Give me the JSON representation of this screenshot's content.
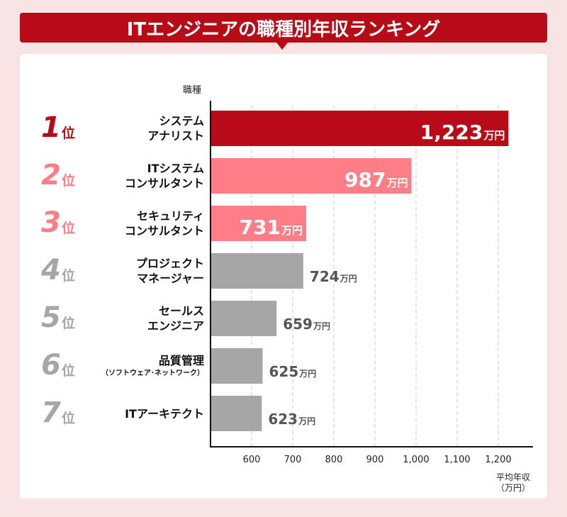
{
  "title": "ITエンジニアの職種別年収ランキング",
  "colors": {
    "banner": "#b70c18",
    "background": "#f8e4e4",
    "rank1": "#b70c18",
    "rank2_3": "#ff7d86",
    "rank_other": "#a6a6a6"
  },
  "chart_data": {
    "type": "bar",
    "orientation": "horizontal",
    "ylabel": "職種",
    "xlabel_line1": "平均年収",
    "xlabel_line2": "（万円）",
    "xlim": [
      500,
      1250
    ],
    "xticks": [
      600,
      700,
      800,
      900,
      1000,
      1100,
      1200
    ],
    "xtick_labels": [
      "600",
      "700",
      "800",
      "900",
      "1,000",
      "1,100",
      "1,200"
    ],
    "grid": "vertical dashed",
    "unit": "万円",
    "items": [
      {
        "rank": "1",
        "rank_suffix": "位",
        "job_line1": "システム",
        "job_line2": "アナリスト",
        "value": 1223,
        "value_label": "1,223"
      },
      {
        "rank": "2",
        "rank_suffix": "位",
        "job_line1": "ITシステム",
        "job_line2": "コンサルタント",
        "value": 987,
        "value_label": "987"
      },
      {
        "rank": "3",
        "rank_suffix": "位",
        "job_line1": "セキュリティ",
        "job_line2": "コンサルタント",
        "value": 731,
        "value_label": "731"
      },
      {
        "rank": "4",
        "rank_suffix": "位",
        "job_line1": "プロジェクト",
        "job_line2": "マネージャー",
        "value": 724,
        "value_label": "724"
      },
      {
        "rank": "5",
        "rank_suffix": "位",
        "job_line1": "セールス",
        "job_line2": "エンジニア",
        "value": 659,
        "value_label": "659"
      },
      {
        "rank": "6",
        "rank_suffix": "位",
        "job_line1": "品質管理",
        "job_line2": "（ソフトウェア･ネットワーク）",
        "value": 625,
        "value_label": "625"
      },
      {
        "rank": "7",
        "rank_suffix": "位",
        "job_line1": "ITアーキテクト",
        "job_line2": "",
        "value": 623,
        "value_label": "623"
      }
    ]
  }
}
